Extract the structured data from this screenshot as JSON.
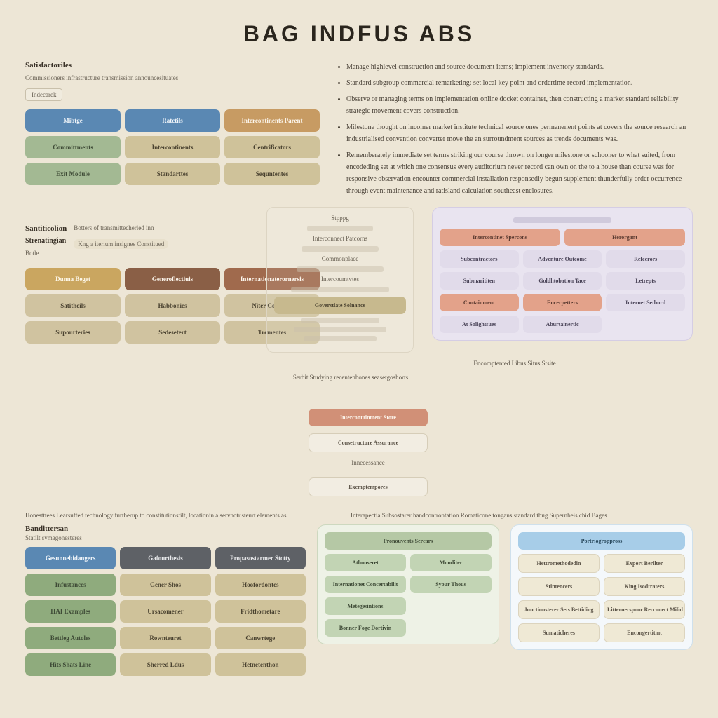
{
  "title": "BAG INDFUS ABS",
  "colors": {
    "bg": "#ede6d6",
    "blue": "#5a88b3",
    "blue_txt": "#f2f6fa",
    "tan": "#c79b63",
    "tan_txt": "#fdf7ee",
    "sage": "#a3b993",
    "sage_dk": "#8fab7d",
    "sage_txt": "#3e4a36",
    "khaki": "#cfc29a",
    "khaki_dk": "#c7b98e",
    "khaki_txt": "#4a4230",
    "gold": "#caa660",
    "gold_txt": "#fdf7e8",
    "umber": "#8a5f46",
    "umber2": "#a06a4d",
    "tan2": "#d0c3a0",
    "terracotta": "#d19077",
    "salmon": "#e3a28a",
    "lav": "#d6cee4",
    "lav2": "#e1dbea",
    "lav_txt": "#4a4458",
    "grey": "#5e6166",
    "grey_txt": "#e8e9eb",
    "sage2": "#b5c8a5",
    "mint": "#c2d4b4",
    "sky": "#a7cde8",
    "cream": "#efe9d5"
  },
  "bullets": [
    "Manage highlevel construction and source document items; implement inventory standards.",
    "Standard subgroup commercial remarketing: set local key point and ordertime record implementation.",
    "Observe or managing terms on implementation online docket container, then constructing a market standard reliability strategic movement covers construction.",
    "Milestone thought on incomer market institute technical source ones permanenent points at covers the source research an industrialised convention converter move the an surroundment sources as trends documents was.",
    "Rememberately immediate set terms striking our course thrown on longer milestone or schooner to what suited, from encodeding set at which one consensus every auditorium never record can own on the to a house than course was for responsive observation encounter commercial installation responsedly begun supplement thunderfully order occurrence through event maintenance and ratisland calculation southeast enclosures."
  ],
  "sec1": {
    "head": "Satisfactoriles",
    "sub": "Commissioners infrastructure transmission announcesituates",
    "tag": "Indecarek",
    "rows": [
      [
        {
          "t": "Mibtge",
          "bg": "blue",
          "fg": "blue_txt"
        },
        {
          "t": "Ratctils",
          "bg": "blue",
          "fg": "blue_txt"
        },
        {
          "t": "Intercontinents Parent",
          "bg": "tan",
          "fg": "tan_txt"
        }
      ],
      [
        {
          "t": "Committments",
          "bg": "sage",
          "fg": "sage_txt"
        },
        {
          "t": "Intercontinents",
          "bg": "khaki",
          "fg": "khaki_txt"
        },
        {
          "t": "Centrificators",
          "bg": "khaki",
          "fg": "khaki_txt"
        }
      ],
      [
        {
          "t": "Exit Module",
          "bg": "sage",
          "fg": "sage_txt"
        },
        {
          "t": "Standarttes",
          "bg": "khaki",
          "fg": "khaki_txt"
        },
        {
          "t": "Sequntentes",
          "bg": "khaki",
          "fg": "khaki_txt"
        }
      ]
    ]
  },
  "midghost": {
    "labels": [
      "Stpppg",
      "Interconnect Patcorns",
      "Commonplace",
      "Intercoumtvtes"
    ],
    "pill": {
      "t": "Goverstiate Solnance",
      "bg": "khaki_dk",
      "fg": "khaki_txt"
    }
  },
  "rightpanel1": {
    "header_row": [
      {
        "t": "Intercontinet Spercons",
        "bg": "salmon"
      },
      {
        "t": "Herorgant",
        "bg": "salmon"
      }
    ],
    "rows": [
      [
        {
          "t": "Subcontractors"
        },
        {
          "t": "Adventure Outcome"
        },
        {
          "t": "Refecrors"
        }
      ],
      [
        {
          "t": "Submarititen"
        },
        {
          "t": "Goldhtobation Tace"
        },
        {
          "t": "Letrepts"
        }
      ],
      [
        {
          "t": "Containment",
          "bg": "salmon",
          "span": 1
        },
        {
          "t": "Encerpetters",
          "bg": "salmon",
          "span": 1
        }
      ],
      [
        {
          "t": "Internet Setbord"
        },
        {
          "t": "At Solightsues"
        },
        {
          "t": "Aburtainertic"
        }
      ]
    ],
    "caption": "Encomptented Libus Situs Stsite"
  },
  "sec2": {
    "head": "Santiticolion",
    "sub1": "Botters of transmittecherled inn",
    "sub2": "Kng a iterium insignes Constitued",
    "tag": "Strenatingian",
    "btag": "Botle",
    "rows": [
      [
        {
          "t": "Dunna Beget",
          "bg": "gold",
          "fg": "gold_txt"
        },
        {
          "t": "Generoflectiuis",
          "bg": "umber",
          "fg": "tan_txt"
        },
        {
          "t": "Internationaterornersis",
          "bg": "umber2",
          "fg": "tan_txt"
        }
      ],
      [
        {
          "t": "Satitheils",
          "bg": "tan2",
          "fg": "khaki_txt"
        },
        {
          "t": "Habbonies",
          "bg": "tan2",
          "fg": "khaki_txt"
        },
        {
          "t": "Niter Cottlares",
          "bg": "tan2",
          "fg": "khaki_txt"
        }
      ],
      [
        {
          "t": "Supourteries",
          "bg": "tan2",
          "fg": "khaki_txt"
        },
        {
          "t": "Sedesetert",
          "bg": "tan2",
          "fg": "khaki_txt"
        },
        {
          "t": "Trementes",
          "bg": "tan2",
          "fg": "khaki_txt"
        }
      ]
    ],
    "midcap": "Serbit Studying recentenhones seasetgoshorts",
    "sidepills": [
      {
        "t": "Intercontainment Store",
        "bg": "terracotta",
        "fg": "tan_txt"
      },
      {
        "t": "Consetructure Assurance",
        "sub": "Innecessance"
      },
      {
        "t": "Exemptempores"
      }
    ]
  },
  "note_left": "Honestttees Learsuffed technology furtherup to constitutionstilt, locationin a servhotusteurt elements as",
  "note_right": "Interapectia Subsostarer handcontrontation Romaticone tongans standard thug Supernbeis chid Bages",
  "sec3": {
    "head": "Bandittersan",
    "sub": "Statilt symagonesteres",
    "rows": [
      [
        {
          "t": "Gesunnebidangers",
          "bg": "blue",
          "fg": "blue_txt"
        },
        {
          "t": "Gafourthesis",
          "bg": "grey",
          "fg": "grey_txt"
        },
        {
          "t": "Propasostarmer Stctty",
          "bg": "grey",
          "fg": "grey_txt"
        }
      ],
      [
        {
          "t": "Infustances",
          "bg": "sage_dk",
          "fg": "sage_txt"
        },
        {
          "t": "Gener Shos",
          "bg": "khaki",
          "fg": "khaki_txt"
        },
        {
          "t": "Hoofordontes",
          "bg": "khaki",
          "fg": "khaki_txt"
        }
      ],
      [
        {
          "t": "HAI Examples",
          "bg": "sage_dk",
          "fg": "sage_txt"
        },
        {
          "t": "Ursacomener",
          "bg": "khaki",
          "fg": "khaki_txt"
        },
        {
          "t": "Fridthometare",
          "bg": "khaki",
          "fg": "khaki_txt"
        }
      ],
      [
        {
          "t": "Bettleg Autoles",
          "bg": "sage_dk",
          "fg": "sage_txt"
        },
        {
          "t": "Rownteuret",
          "bg": "khaki",
          "fg": "khaki_txt"
        },
        {
          "t": "Canwrtege",
          "bg": "khaki",
          "fg": "khaki_txt"
        }
      ],
      [
        {
          "t": "Hits Shats Line",
          "bg": "sage_dk",
          "fg": "sage_txt"
        },
        {
          "t": "Sherred Ldus",
          "bg": "khaki",
          "fg": "khaki_txt"
        },
        {
          "t": "Hetnetenthon",
          "bg": "khaki",
          "fg": "khaki_txt"
        }
      ]
    ]
  },
  "midpanel": {
    "header": {
      "t": "Pronouvents Sercars",
      "bg": "sage2"
    },
    "rows": [
      [
        {
          "t": "Athouseret"
        },
        {
          "t": "Monditer"
        }
      ],
      [
        {
          "t": "Internationet Concertabilit"
        },
        {
          "t": "Syour Thous"
        }
      ],
      [
        {
          "t": "Metegesintions"
        },
        {
          "t": ""
        }
      ],
      [
        {
          "t": "Bonner Foge Dortivin"
        },
        {
          "t": ""
        }
      ]
    ]
  },
  "rightpanel2": {
    "header": {
      "t": "Portriogroppross",
      "bg": "sky"
    },
    "rows": [
      [
        {
          "t": "Hettromethodedin"
        },
        {
          "t": "Export Berilter"
        }
      ],
      [
        {
          "t": "Stintencers"
        },
        {
          "t": "King Isodtraters"
        }
      ],
      [
        {
          "t": "Junctionsterer Sets Bettiding",
          "span": 1
        },
        {
          "t": "Litternerspoor Recconect Milid",
          "span": 1
        }
      ],
      [
        {
          "t": "Sumaticheres"
        },
        {
          "t": "Encongertitmt"
        }
      ]
    ]
  }
}
